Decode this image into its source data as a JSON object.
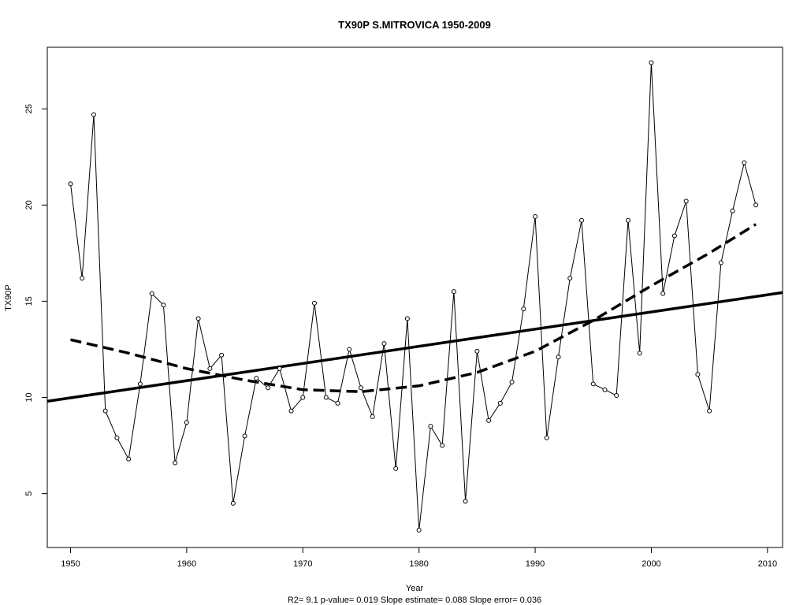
{
  "chart_data": {
    "type": "line",
    "title": "TX90P   S.MITROVICA 1950-2009",
    "xlabel": "Year",
    "ylabel": "TX90P",
    "footer": "R2= 9.1  p-value= 0.019  Slope estimate= 0.088  Slope error= 0.036",
    "xlim": [
      1948,
      2011.3
    ],
    "ylim": [
      2.2,
      28.2
    ],
    "x_ticks": [
      1950,
      1960,
      1970,
      1980,
      1990,
      2000,
      2010
    ],
    "y_ticks": [
      5,
      10,
      15,
      20,
      25
    ],
    "grid": false,
    "series": [
      {
        "style": "line-with-points",
        "x": [
          1950,
          1951,
          1952,
          1953,
          1954,
          1955,
          1956,
          1957,
          1958,
          1959,
          1960,
          1961,
          1962,
          1963,
          1964,
          1965,
          1966,
          1967,
          1968,
          1969,
          1970,
          1971,
          1972,
          1973,
          1974,
          1975,
          1976,
          1977,
          1978,
          1979,
          1980,
          1981,
          1982,
          1983,
          1984,
          1985,
          1986,
          1987,
          1988,
          1989,
          1990,
          1991,
          1992,
          1993,
          1994,
          1995,
          1996,
          1997,
          1998,
          1999,
          2000,
          2001,
          2002,
          2003,
          2004,
          2005,
          2006,
          2007,
          2008,
          2009
        ],
        "values": [
          21.1,
          16.2,
          24.7,
          9.3,
          7.9,
          6.8,
          10.7,
          15.4,
          14.8,
          6.6,
          8.7,
          14.1,
          11.5,
          12.2,
          4.5,
          8.0,
          11.0,
          10.5,
          11.5,
          9.3,
          10.0,
          14.9,
          10.0,
          9.7,
          12.5,
          10.5,
          9.0,
          12.8,
          6.3,
          14.1,
          3.1,
          8.5,
          7.5,
          15.5,
          4.6,
          12.4,
          8.8,
          9.7,
          10.8,
          14.6,
          19.4,
          7.9,
          12.1,
          16.2,
          19.2,
          10.7,
          10.4,
          10.1,
          19.2,
          12.3,
          27.4,
          15.4,
          18.4,
          20.2,
          11.2,
          9.3,
          17.0,
          19.7,
          22.2,
          20.0
        ]
      },
      {
        "style": "solid-thick",
        "x": [
          1948,
          2011.3
        ],
        "values": [
          9.8,
          15.45
        ]
      },
      {
        "style": "dashed-thick",
        "x": [
          1950,
          1955,
          1960,
          1965,
          1970,
          1975,
          1980,
          1985,
          1990,
          1995,
          2000,
          2005,
          2009
        ],
        "values": [
          13.0,
          12.3,
          11.5,
          10.9,
          10.4,
          10.3,
          10.6,
          11.3,
          12.4,
          14.0,
          15.8,
          17.5,
          19.0
        ]
      }
    ]
  }
}
